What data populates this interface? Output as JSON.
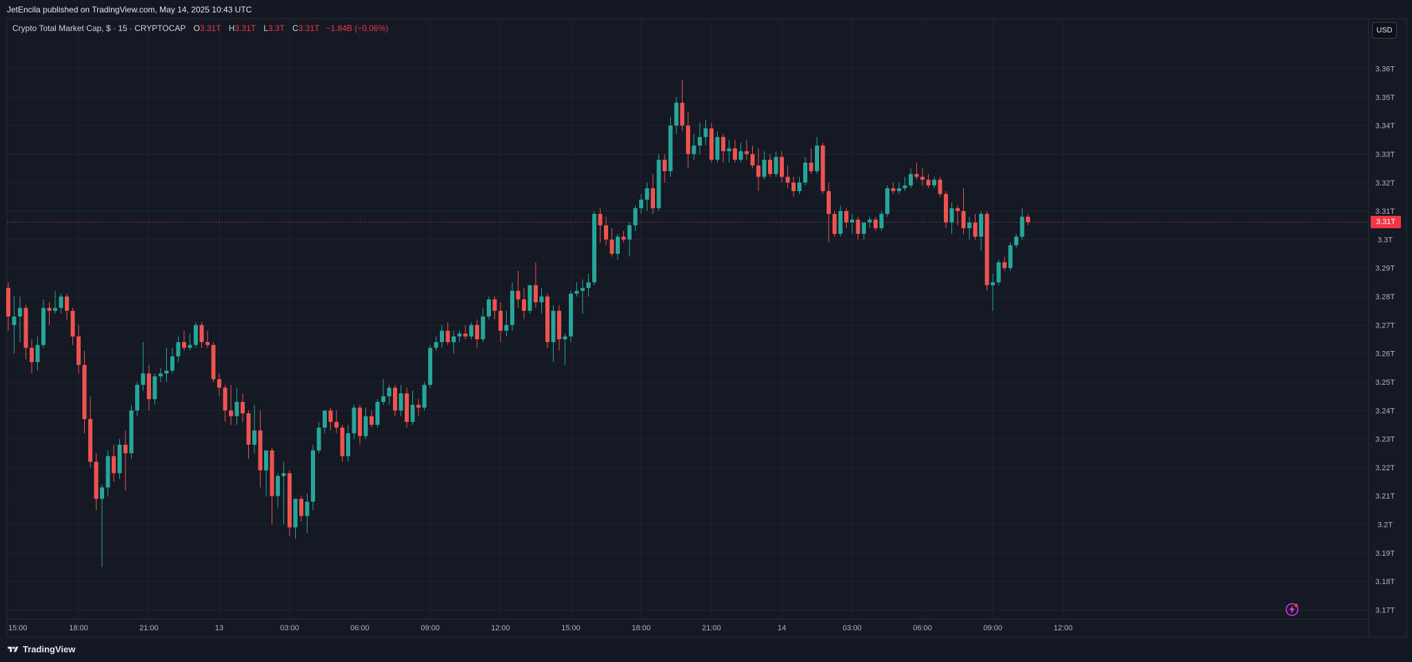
{
  "header": {
    "publisher": "JetEncila published on TradingView.com, May 14, 2025 10:43 UTC"
  },
  "legend": {
    "title": "Crypto Total Market Cap, $ · 15 · CRYPTOCAP",
    "o_label": "O",
    "o_value": "3.31T",
    "h_label": "H",
    "h_value": "3.31T",
    "l_label": "L",
    "l_value": "3.3T",
    "c_label": "C",
    "c_value": "3.31T",
    "change": "−1.84B (−0.06%)"
  },
  "currency_label": "USD",
  "last_price_label": "3.31T",
  "brand": "TradingView",
  "colors": {
    "up": "#26a69a",
    "down": "#ef5350",
    "background": "#141823",
    "grid": "#1f2431"
  },
  "icons": {
    "logo": "tradingview-logo-icon",
    "flash": "flash-lightning-icon"
  },
  "chart_data": {
    "type": "candlestick",
    "y_unit": "T USD",
    "ylim": [
      3.165,
      3.3675
    ],
    "yticks": [
      3.17,
      3.18,
      3.19,
      3.2,
      3.21,
      3.22,
      3.23,
      3.24,
      3.25,
      3.26,
      3.27,
      3.28,
      3.29,
      3.3,
      3.31,
      3.32,
      3.33,
      3.34,
      3.35,
      3.36
    ],
    "ytick_labels": [
      "3.17T",
      "3.18T",
      "3.19T",
      "3.2T",
      "3.21T",
      "3.22T",
      "3.23T",
      "3.24T",
      "3.25T",
      "3.26T",
      "3.27T",
      "3.28T",
      "3.29T",
      "3.3T",
      "3.31T",
      "3.32T",
      "3.33T",
      "3.34T",
      "3.35T",
      "3.36T"
    ],
    "x_ticks": [
      {
        "index": 0,
        "label": "15:00"
      },
      {
        "index": 12,
        "label": "18:00"
      },
      {
        "index": 24,
        "label": "21:00"
      },
      {
        "index": 36,
        "label": "13"
      },
      {
        "index": 48,
        "label": "03:00"
      },
      {
        "index": 60,
        "label": "06:00"
      },
      {
        "index": 72,
        "label": "09:00"
      },
      {
        "index": 84,
        "label": "12:00"
      },
      {
        "index": 96,
        "label": "15:00"
      },
      {
        "index": 108,
        "label": "18:00"
      },
      {
        "index": 120,
        "label": "21:00"
      },
      {
        "index": 132,
        "label": "14"
      },
      {
        "index": 144,
        "label": "03:00"
      },
      {
        "index": 156,
        "label": "06:00"
      },
      {
        "index": 168,
        "label": "09:00"
      },
      {
        "index": 180,
        "label": "12:00"
      }
    ],
    "last_price": 3.3061,
    "candles": [
      {
        "o": 3.283,
        "h": 3.285,
        "l": 3.268,
        "c": 3.273
      },
      {
        "o": 3.27,
        "h": 3.28,
        "l": 3.26,
        "c": 3.273
      },
      {
        "o": 3.273,
        "h": 3.28,
        "l": 3.264,
        "c": 3.276
      },
      {
        "o": 3.276,
        "h": 3.277,
        "l": 3.258,
        "c": 3.262
      },
      {
        "o": 3.262,
        "h": 3.265,
        "l": 3.253,
        "c": 3.257
      },
      {
        "o": 3.257,
        "h": 3.266,
        "l": 3.254,
        "c": 3.263
      },
      {
        "o": 3.263,
        "h": 3.279,
        "l": 3.262,
        "c": 3.276
      },
      {
        "o": 3.276,
        "h": 3.278,
        "l": 3.27,
        "c": 3.275
      },
      {
        "o": 3.275,
        "h": 3.282,
        "l": 3.274,
        "c": 3.276
      },
      {
        "o": 3.276,
        "h": 3.281,
        "l": 3.274,
        "c": 3.28
      },
      {
        "o": 3.28,
        "h": 3.281,
        "l": 3.272,
        "c": 3.275
      },
      {
        "o": 3.275,
        "h": 3.276,
        "l": 3.263,
        "c": 3.266
      },
      {
        "o": 3.266,
        "h": 3.27,
        "l": 3.253,
        "c": 3.256
      },
      {
        "o": 3.256,
        "h": 3.261,
        "l": 3.232,
        "c": 3.237
      },
      {
        "o": 3.237,
        "h": 3.245,
        "l": 3.22,
        "c": 3.222
      },
      {
        "o": 3.222,
        "h": 3.225,
        "l": 3.205,
        "c": 3.209
      },
      {
        "o": 3.209,
        "h": 3.214,
        "l": 3.185,
        "c": 3.213
      },
      {
        "o": 3.213,
        "h": 3.226,
        "l": 3.21,
        "c": 3.224
      },
      {
        "o": 3.224,
        "h": 3.228,
        "l": 3.215,
        "c": 3.218
      },
      {
        "o": 3.218,
        "h": 3.23,
        "l": 3.216,
        "c": 3.228
      },
      {
        "o": 3.228,
        "h": 3.233,
        "l": 3.212,
        "c": 3.225
      },
      {
        "o": 3.225,
        "h": 3.242,
        "l": 3.223,
        "c": 3.24
      },
      {
        "o": 3.24,
        "h": 3.25,
        "l": 3.238,
        "c": 3.249
      },
      {
        "o": 3.249,
        "h": 3.264,
        "l": 3.247,
        "c": 3.253
      },
      {
        "o": 3.253,
        "h": 3.256,
        "l": 3.24,
        "c": 3.244
      },
      {
        "o": 3.244,
        "h": 3.253,
        "l": 3.242,
        "c": 3.252
      },
      {
        "o": 3.252,
        "h": 3.255,
        "l": 3.25,
        "c": 3.253
      },
      {
        "o": 3.253,
        "h": 3.262,
        "l": 3.25,
        "c": 3.254
      },
      {
        "o": 3.254,
        "h": 3.262,
        "l": 3.253,
        "c": 3.259
      },
      {
        "o": 3.259,
        "h": 3.266,
        "l": 3.257,
        "c": 3.264
      },
      {
        "o": 3.264,
        "h": 3.268,
        "l": 3.261,
        "c": 3.262
      },
      {
        "o": 3.262,
        "h": 3.267,
        "l": 3.261,
        "c": 3.263
      },
      {
        "o": 3.263,
        "h": 3.271,
        "l": 3.262,
        "c": 3.27
      },
      {
        "o": 3.27,
        "h": 3.271,
        "l": 3.262,
        "c": 3.264
      },
      {
        "o": 3.264,
        "h": 3.268,
        "l": 3.262,
        "c": 3.263
      },
      {
        "o": 3.263,
        "h": 3.264,
        "l": 3.25,
        "c": 3.251
      },
      {
        "o": 3.251,
        "h": 3.253,
        "l": 3.245,
        "c": 3.248
      },
      {
        "o": 3.248,
        "h": 3.249,
        "l": 3.236,
        "c": 3.24
      },
      {
        "o": 3.24,
        "h": 3.249,
        "l": 3.235,
        "c": 3.238
      },
      {
        "o": 3.238,
        "h": 3.248,
        "l": 3.235,
        "c": 3.243
      },
      {
        "o": 3.243,
        "h": 3.246,
        "l": 3.236,
        "c": 3.239
      },
      {
        "o": 3.239,
        "h": 3.24,
        "l": 3.223,
        "c": 3.228
      },
      {
        "o": 3.228,
        "h": 3.242,
        "l": 3.225,
        "c": 3.233
      },
      {
        "o": 3.233,
        "h": 3.24,
        "l": 3.213,
        "c": 3.219
      },
      {
        "o": 3.219,
        "h": 3.225,
        "l": 3.21,
        "c": 3.226
      },
      {
        "o": 3.226,
        "h": 3.227,
        "l": 3.2,
        "c": 3.21
      },
      {
        "o": 3.21,
        "h": 3.218,
        "l": 3.206,
        "c": 3.217
      },
      {
        "o": 3.217,
        "h": 3.222,
        "l": 3.2,
        "c": 3.218
      },
      {
        "o": 3.218,
        "h": 3.219,
        "l": 3.196,
        "c": 3.199
      },
      {
        "o": 3.199,
        "h": 3.209,
        "l": 3.195,
        "c": 3.209
      },
      {
        "o": 3.209,
        "h": 3.21,
        "l": 3.201,
        "c": 3.203
      },
      {
        "o": 3.203,
        "h": 3.211,
        "l": 3.197,
        "c": 3.208
      },
      {
        "o": 3.208,
        "h": 3.228,
        "l": 3.205,
        "c": 3.226
      },
      {
        "o": 3.226,
        "h": 3.236,
        "l": 3.225,
        "c": 3.234
      },
      {
        "o": 3.234,
        "h": 3.24,
        "l": 3.232,
        "c": 3.24
      },
      {
        "o": 3.24,
        "h": 3.241,
        "l": 3.233,
        "c": 3.236
      },
      {
        "o": 3.236,
        "h": 3.24,
        "l": 3.232,
        "c": 3.234
      },
      {
        "o": 3.234,
        "h": 3.235,
        "l": 3.222,
        "c": 3.224
      },
      {
        "o": 3.224,
        "h": 3.235,
        "l": 3.222,
        "c": 3.232
      },
      {
        "o": 3.232,
        "h": 3.242,
        "l": 3.23,
        "c": 3.241
      },
      {
        "o": 3.241,
        "h": 3.242,
        "l": 3.228,
        "c": 3.231
      },
      {
        "o": 3.231,
        "h": 3.241,
        "l": 3.23,
        "c": 3.238
      },
      {
        "o": 3.238,
        "h": 3.24,
        "l": 3.234,
        "c": 3.235
      },
      {
        "o": 3.235,
        "h": 3.244,
        "l": 3.234,
        "c": 3.243
      },
      {
        "o": 3.243,
        "h": 3.251,
        "l": 3.242,
        "c": 3.245
      },
      {
        "o": 3.245,
        "h": 3.249,
        "l": 3.242,
        "c": 3.248
      },
      {
        "o": 3.248,
        "h": 3.249,
        "l": 3.238,
        "c": 3.24
      },
      {
        "o": 3.24,
        "h": 3.249,
        "l": 3.238,
        "c": 3.246
      },
      {
        "o": 3.246,
        "h": 3.248,
        "l": 3.234,
        "c": 3.236
      },
      {
        "o": 3.236,
        "h": 3.247,
        "l": 3.235,
        "c": 3.242
      },
      {
        "o": 3.242,
        "h": 3.244,
        "l": 3.238,
        "c": 3.241
      },
      {
        "o": 3.241,
        "h": 3.25,
        "l": 3.24,
        "c": 3.249
      },
      {
        "o": 3.249,
        "h": 3.263,
        "l": 3.248,
        "c": 3.262
      },
      {
        "o": 3.262,
        "h": 3.266,
        "l": 3.261,
        "c": 3.264
      },
      {
        "o": 3.264,
        "h": 3.27,
        "l": 3.262,
        "c": 3.268
      },
      {
        "o": 3.268,
        "h": 3.271,
        "l": 3.263,
        "c": 3.264
      },
      {
        "o": 3.264,
        "h": 3.268,
        "l": 3.26,
        "c": 3.266
      },
      {
        "o": 3.266,
        "h": 3.268,
        "l": 3.264,
        "c": 3.267
      },
      {
        "o": 3.267,
        "h": 3.27,
        "l": 3.265,
        "c": 3.266
      },
      {
        "o": 3.266,
        "h": 3.271,
        "l": 3.265,
        "c": 3.27
      },
      {
        "o": 3.27,
        "h": 3.272,
        "l": 3.262,
        "c": 3.265
      },
      {
        "o": 3.265,
        "h": 3.276,
        "l": 3.264,
        "c": 3.273
      },
      {
        "o": 3.273,
        "h": 3.28,
        "l": 3.272,
        "c": 3.279
      },
      {
        "o": 3.279,
        "h": 3.28,
        "l": 3.272,
        "c": 3.275
      },
      {
        "o": 3.275,
        "h": 3.278,
        "l": 3.264,
        "c": 3.268
      },
      {
        "o": 3.268,
        "h": 3.275,
        "l": 3.266,
        "c": 3.27
      },
      {
        "o": 3.27,
        "h": 3.285,
        "l": 3.268,
        "c": 3.282
      },
      {
        "o": 3.282,
        "h": 3.289,
        "l": 3.276,
        "c": 3.279
      },
      {
        "o": 3.279,
        "h": 3.283,
        "l": 3.272,
        "c": 3.275
      },
      {
        "o": 3.275,
        "h": 3.283,
        "l": 3.274,
        "c": 3.284
      },
      {
        "o": 3.284,
        "h": 3.292,
        "l": 3.276,
        "c": 3.278
      },
      {
        "o": 3.278,
        "h": 3.283,
        "l": 3.274,
        "c": 3.28
      },
      {
        "o": 3.28,
        "h": 3.281,
        "l": 3.262,
        "c": 3.264
      },
      {
        "o": 3.264,
        "h": 3.277,
        "l": 3.257,
        "c": 3.275
      },
      {
        "o": 3.275,
        "h": 3.277,
        "l": 3.261,
        "c": 3.265
      },
      {
        "o": 3.265,
        "h": 3.267,
        "l": 3.256,
        "c": 3.266
      },
      {
        "o": 3.266,
        "h": 3.282,
        "l": 3.264,
        "c": 3.281
      },
      {
        "o": 3.281,
        "h": 3.285,
        "l": 3.28,
        "c": 3.282
      },
      {
        "o": 3.282,
        "h": 3.286,
        "l": 3.274,
        "c": 3.283
      },
      {
        "o": 3.283,
        "h": 3.288,
        "l": 3.28,
        "c": 3.285
      },
      {
        "o": 3.285,
        "h": 3.31,
        "l": 3.284,
        "c": 3.309
      },
      {
        "o": 3.309,
        "h": 3.311,
        "l": 3.299,
        "c": 3.305
      },
      {
        "o": 3.305,
        "h": 3.308,
        "l": 3.298,
        "c": 3.3
      },
      {
        "o": 3.3,
        "h": 3.304,
        "l": 3.294,
        "c": 3.295
      },
      {
        "o": 3.295,
        "h": 3.302,
        "l": 3.293,
        "c": 3.301
      },
      {
        "o": 3.301,
        "h": 3.303,
        "l": 3.299,
        "c": 3.3
      },
      {
        "o": 3.3,
        "h": 3.306,
        "l": 3.294,
        "c": 3.305
      },
      {
        "o": 3.305,
        "h": 3.312,
        "l": 3.303,
        "c": 3.311
      },
      {
        "o": 3.311,
        "h": 3.316,
        "l": 3.309,
        "c": 3.314
      },
      {
        "o": 3.314,
        "h": 3.32,
        "l": 3.31,
        "c": 3.318
      },
      {
        "o": 3.318,
        "h": 3.323,
        "l": 3.309,
        "c": 3.311
      },
      {
        "o": 3.311,
        "h": 3.33,
        "l": 3.31,
        "c": 3.328
      },
      {
        "o": 3.328,
        "h": 3.33,
        "l": 3.32,
        "c": 3.324
      },
      {
        "o": 3.324,
        "h": 3.343,
        "l": 3.322,
        "c": 3.34
      },
      {
        "o": 3.34,
        "h": 3.35,
        "l": 3.337,
        "c": 3.348
      },
      {
        "o": 3.348,
        "h": 3.356,
        "l": 3.338,
        "c": 3.34
      },
      {
        "o": 3.34,
        "h": 3.345,
        "l": 3.325,
        "c": 3.33
      },
      {
        "o": 3.33,
        "h": 3.337,
        "l": 3.328,
        "c": 3.333
      },
      {
        "o": 3.333,
        "h": 3.341,
        "l": 3.33,
        "c": 3.336
      },
      {
        "o": 3.336,
        "h": 3.342,
        "l": 3.333,
        "c": 3.339
      },
      {
        "o": 3.339,
        "h": 3.341,
        "l": 3.327,
        "c": 3.328
      },
      {
        "o": 3.328,
        "h": 3.338,
        "l": 3.327,
        "c": 3.336
      },
      {
        "o": 3.336,
        "h": 3.337,
        "l": 3.327,
        "c": 3.331
      },
      {
        "o": 3.331,
        "h": 3.335,
        "l": 3.327,
        "c": 3.332
      },
      {
        "o": 3.332,
        "h": 3.335,
        "l": 3.327,
        "c": 3.328
      },
      {
        "o": 3.328,
        "h": 3.334,
        "l": 3.327,
        "c": 3.331
      },
      {
        "o": 3.331,
        "h": 3.335,
        "l": 3.328,
        "c": 3.33
      },
      {
        "o": 3.33,
        "h": 3.333,
        "l": 3.325,
        "c": 3.326
      },
      {
        "o": 3.326,
        "h": 3.332,
        "l": 3.317,
        "c": 3.322
      },
      {
        "o": 3.322,
        "h": 3.331,
        "l": 3.321,
        "c": 3.328
      },
      {
        "o": 3.328,
        "h": 3.33,
        "l": 3.322,
        "c": 3.323
      },
      {
        "o": 3.323,
        "h": 3.331,
        "l": 3.322,
        "c": 3.329
      },
      {
        "o": 3.329,
        "h": 3.331,
        "l": 3.32,
        "c": 3.322
      },
      {
        "o": 3.322,
        "h": 3.326,
        "l": 3.318,
        "c": 3.32
      },
      {
        "o": 3.32,
        "h": 3.322,
        "l": 3.315,
        "c": 3.317
      },
      {
        "o": 3.317,
        "h": 3.322,
        "l": 3.316,
        "c": 3.32
      },
      {
        "o": 3.32,
        "h": 3.329,
        "l": 3.319,
        "c": 3.327
      },
      {
        "o": 3.327,
        "h": 3.332,
        "l": 3.323,
        "c": 3.324
      },
      {
        "o": 3.324,
        "h": 3.336,
        "l": 3.323,
        "c": 3.333
      },
      {
        "o": 3.333,
        "h": 3.334,
        "l": 3.316,
        "c": 3.317
      },
      {
        "o": 3.317,
        "h": 3.32,
        "l": 3.299,
        "c": 3.309
      },
      {
        "o": 3.309,
        "h": 3.31,
        "l": 3.301,
        "c": 3.302
      },
      {
        "o": 3.302,
        "h": 3.312,
        "l": 3.301,
        "c": 3.31
      },
      {
        "o": 3.31,
        "h": 3.311,
        "l": 3.304,
        "c": 3.306
      },
      {
        "o": 3.306,
        "h": 3.309,
        "l": 3.302,
        "c": 3.307
      },
      {
        "o": 3.307,
        "h": 3.308,
        "l": 3.3,
        "c": 3.302
      },
      {
        "o": 3.302,
        "h": 3.305,
        "l": 3.3,
        "c": 3.306
      },
      {
        "o": 3.306,
        "h": 3.308,
        "l": 3.304,
        "c": 3.307
      },
      {
        "o": 3.307,
        "h": 3.308,
        "l": 3.303,
        "c": 3.304
      },
      {
        "o": 3.304,
        "h": 3.31,
        "l": 3.303,
        "c": 3.309
      },
      {
        "o": 3.309,
        "h": 3.319,
        "l": 3.308,
        "c": 3.318
      },
      {
        "o": 3.318,
        "h": 3.32,
        "l": 3.316,
        "c": 3.317
      },
      {
        "o": 3.317,
        "h": 3.32,
        "l": 3.316,
        "c": 3.318
      },
      {
        "o": 3.318,
        "h": 3.322,
        "l": 3.317,
        "c": 3.319
      },
      {
        "o": 3.319,
        "h": 3.325,
        "l": 3.318,
        "c": 3.323
      },
      {
        "o": 3.323,
        "h": 3.327,
        "l": 3.321,
        "c": 3.322
      },
      {
        "o": 3.322,
        "h": 3.325,
        "l": 3.319,
        "c": 3.321
      },
      {
        "o": 3.321,
        "h": 3.323,
        "l": 3.318,
        "c": 3.319
      },
      {
        "o": 3.319,
        "h": 3.322,
        "l": 3.318,
        "c": 3.321
      },
      {
        "o": 3.321,
        "h": 3.322,
        "l": 3.315,
        "c": 3.316
      },
      {
        "o": 3.316,
        "h": 3.317,
        "l": 3.304,
        "c": 3.306
      },
      {
        "o": 3.306,
        "h": 3.313,
        "l": 3.302,
        "c": 3.311
      },
      {
        "o": 3.311,
        "h": 3.312,
        "l": 3.305,
        "c": 3.31
      },
      {
        "o": 3.31,
        "h": 3.318,
        "l": 3.302,
        "c": 3.304
      },
      {
        "o": 3.304,
        "h": 3.308,
        "l": 3.3,
        "c": 3.306
      },
      {
        "o": 3.306,
        "h": 3.309,
        "l": 3.3,
        "c": 3.301
      },
      {
        "o": 3.301,
        "h": 3.31,
        "l": 3.296,
        "c": 3.309
      },
      {
        "o": 3.309,
        "h": 3.31,
        "l": 3.282,
        "c": 3.284
      },
      {
        "o": 3.284,
        "h": 3.288,
        "l": 3.275,
        "c": 3.285
      },
      {
        "o": 3.285,
        "h": 3.293,
        "l": 3.284,
        "c": 3.292
      },
      {
        "o": 3.292,
        "h": 3.294,
        "l": 3.289,
        "c": 3.29
      },
      {
        "o": 3.29,
        "h": 3.299,
        "l": 3.289,
        "c": 3.298
      },
      {
        "o": 3.298,
        "h": 3.302,
        "l": 3.297,
        "c": 3.301
      },
      {
        "o": 3.301,
        "h": 3.311,
        "l": 3.3,
        "c": 3.308
      },
      {
        "o": 3.308,
        "h": 3.309,
        "l": 3.305,
        "c": 3.3061
      }
    ]
  }
}
